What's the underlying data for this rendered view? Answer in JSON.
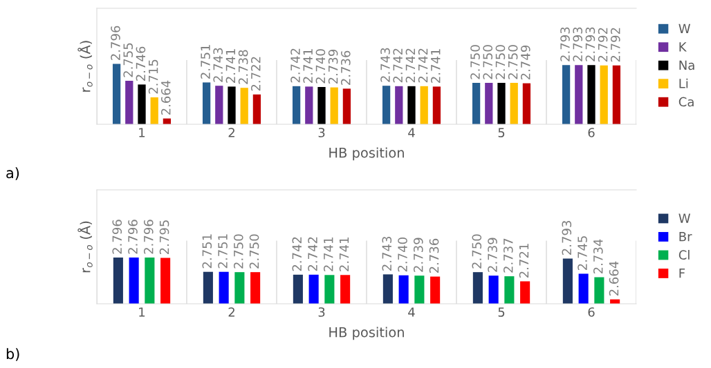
{
  "chart_data": [
    {
      "type": "bar",
      "xlabel": "HB position",
      "ylabel": "r$_{o−o}$ (Å)",
      "categories": [
        "1",
        "2",
        "3",
        "4",
        "5",
        "6"
      ],
      "ylim": [
        2.65,
        2.93
      ],
      "tick_labels": "x",
      "legend": "right",
      "annotations": [
        "a)"
      ],
      "series": [
        {
          "name": "W",
          "color": "#255e91",
          "values": [
            2.796,
            2.751,
            2.742,
            2.743,
            2.75,
            2.793
          ],
          "value_labels": [
            "2.796",
            "2.751",
            "2.742",
            "2.743",
            "2.750",
            "2.793"
          ]
        },
        {
          "name": "K",
          "color": "#7030a0",
          "values": [
            2.755,
            2.743,
            2.741,
            2.742,
            2.75,
            2.793
          ],
          "value_labels": [
            "2.755",
            "2.743",
            "2.741",
            "2.742",
            "2.750",
            "2.793"
          ]
        },
        {
          "name": "Na",
          "color": "#000000",
          "values": [
            2.746,
            2.741,
            2.74,
            2.742,
            2.75,
            2.793
          ],
          "value_labels": [
            "2.746",
            "2.741",
            "2.740",
            "2.742",
            "2.750",
            "2.793"
          ]
        },
        {
          "name": "Li",
          "color": "#ffc000",
          "values": [
            2.715,
            2.738,
            2.739,
            2.742,
            2.75,
            2.792
          ],
          "value_labels": [
            "2.715",
            "2.738",
            "2.739",
            "2.742",
            "2.750",
            "2.792"
          ]
        },
        {
          "name": "Ca",
          "color": "#c00000",
          "values": [
            2.664,
            2.722,
            2.736,
            2.741,
            2.749,
            2.792
          ],
          "value_labels": [
            "2.664",
            "2.722",
            "2.736",
            "2.741",
            "2.749",
            "2.792"
          ]
        }
      ]
    },
    {
      "type": "bar",
      "xlabel": "HB position",
      "ylabel": "r$_{o−o}$ (Å)",
      "categories": [
        "1",
        "2",
        "3",
        "4",
        "5",
        "6"
      ],
      "ylim": [
        2.65,
        3.01
      ],
      "tick_labels": "x",
      "legend": "right",
      "annotations": [
        "b)"
      ],
      "series": [
        {
          "name": "W",
          "color": "#1f3864",
          "values": [
            2.796,
            2.751,
            2.742,
            2.743,
            2.75,
            2.793
          ],
          "value_labels": [
            "2.796",
            "2.751",
            "2.742",
            "2.743",
            "2.750",
            "2.793"
          ]
        },
        {
          "name": "Br",
          "color": "#0000ff",
          "values": [
            2.796,
            2.751,
            2.742,
            2.74,
            2.739,
            2.745
          ],
          "value_labels": [
            "2.796",
            "2.751",
            "2.742",
            "2.740",
            "2.739",
            "2.745"
          ]
        },
        {
          "name": "Cl",
          "color": "#00b050",
          "values": [
            2.796,
            2.75,
            2.741,
            2.739,
            2.737,
            2.734
          ],
          "value_labels": [
            "2.796",
            "2.750",
            "2.741",
            "2.739",
            "2.737",
            "2.734"
          ]
        },
        {
          "name": "F",
          "color": "#ff0000",
          "values": [
            2.795,
            2.75,
            2.741,
            2.736,
            2.721,
            2.664
          ],
          "value_labels": [
            "2.795",
            "2.750",
            "2.741",
            "2.736",
            "2.721",
            "2.664"
          ]
        }
      ]
    }
  ]
}
